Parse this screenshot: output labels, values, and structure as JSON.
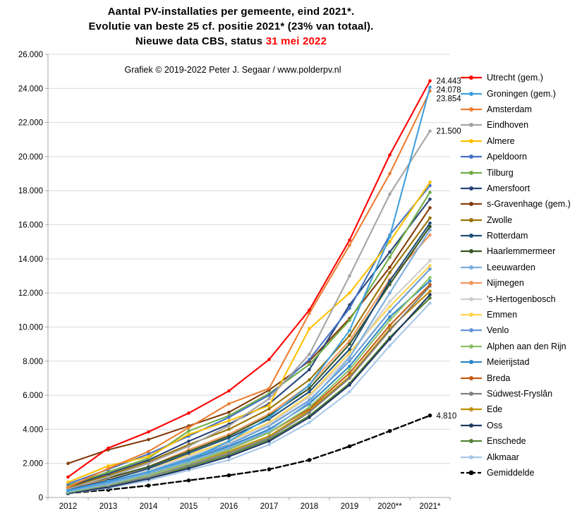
{
  "title": {
    "line1": "Aantal PV-installaties per gemeente, eind 2021*.",
    "line2": "Evolutie van beste 25 cf. positie 2021* (23% van totaal).",
    "line3_prefix": "Nieuwe data CBS, status ",
    "line3_date": "31 mei 2022"
  },
  "subtitle": "Grafiek © 2019-2022 Peter J. Segaar / www.polderpv.nl",
  "colors": {
    "date_red": "#FF0000",
    "grid": "#D9D9D9",
    "axis": "#A6A6A6",
    "text": "#000000"
  },
  "chart_data": {
    "type": "line",
    "x_categories": [
      "2012",
      "2013",
      "2014",
      "2015",
      "2016",
      "2017",
      "2018",
      "2019",
      "2020**",
      "2021*"
    ],
    "ylim": [
      0,
      26000
    ],
    "y_tick_step": 2000,
    "grid": true,
    "legend_position": "right",
    "series": [
      {
        "name": "Utrecht (gem.)",
        "color": "#FF0000",
        "values": [
          1200,
          2900,
          3850,
          4950,
          6250,
          8100,
          11000,
          15100,
          20100,
          24443
        ]
      },
      {
        "name": "Groningen (gem.)",
        "color": "#3FA0DC",
        "values": [
          400,
          950,
          1500,
          2200,
          3300,
          4700,
          6600,
          9800,
          15300,
          24078
        ]
      },
      {
        "name": "Amsterdam",
        "color": "#ED7D31",
        "values": [
          600,
          1700,
          2700,
          4100,
          5500,
          6400,
          10800,
          14800,
          19000,
          23854
        ]
      },
      {
        "name": "Eindhoven",
        "color": "#A5A5A5",
        "values": [
          500,
          1200,
          2000,
          3000,
          4200,
          5800,
          8400,
          13000,
          17800,
          21500
        ]
      },
      {
        "name": "Almere",
        "color": "#FFC000",
        "values": [
          900,
          1850,
          2400,
          3700,
          4500,
          5400,
          9900,
          12000,
          15000,
          18500
        ]
      },
      {
        "name": "Apeldoorn",
        "color": "#4472C4",
        "values": [
          800,
          1650,
          2550,
          3600,
          4700,
          6000,
          8100,
          11100,
          15400,
          18300
        ]
      },
      {
        "name": "Tilburg",
        "color": "#70AD47",
        "values": [
          700,
          1500,
          2300,
          3900,
          4800,
          6100,
          7800,
          10400,
          14100,
          17900
        ]
      },
      {
        "name": "Amersfoort",
        "color": "#264478",
        "values": [
          650,
          1400,
          2200,
          3300,
          4300,
          5500,
          7500,
          11300,
          14400,
          17500
        ]
      },
      {
        "name": "s-Gravenhage (gem.)",
        "color": "#843C0C",
        "values": [
          2000,
          2800,
          3400,
          4200,
          5000,
          6300,
          8000,
          10500,
          13500,
          17000
        ]
      },
      {
        "name": "Zwolle",
        "color": "#997300",
        "values": [
          600,
          1300,
          2100,
          3100,
          4000,
          5200,
          6900,
          9500,
          13200,
          16400
        ]
      },
      {
        "name": "Rotterdam",
        "color": "#1F4E79",
        "values": [
          450,
          1000,
          1700,
          2600,
          3500,
          4600,
          6200,
          8700,
          12700,
          16100
        ]
      },
      {
        "name": "Haarlemmermeer",
        "color": "#375623",
        "values": [
          550,
          1150,
          1800,
          2700,
          3600,
          4800,
          6400,
          9000,
          12500,
          15900
        ]
      },
      {
        "name": "Leeuwarden",
        "color": "#7CAFDD",
        "values": [
          350,
          800,
          1400,
          2100,
          2900,
          3900,
          5600,
          8200,
          12000,
          15700
        ]
      },
      {
        "name": "Nijmegen",
        "color": "#F1975A",
        "values": [
          500,
          1100,
          1800,
          2800,
          3700,
          4900,
          6600,
          9200,
          12800,
          15400
        ]
      },
      {
        "name": "'s-Hertogenbosch",
        "color": "#CFCFCF",
        "values": [
          400,
          950,
          1600,
          2400,
          3200,
          4300,
          5900,
          8300,
          11500,
          13900
        ]
      },
      {
        "name": "Emmen",
        "color": "#FFD34D",
        "values": [
          450,
          1000,
          1700,
          2500,
          3300,
          4400,
          6000,
          8500,
          11200,
          13600
        ]
      },
      {
        "name": "Venlo",
        "color": "#6699D6",
        "values": [
          350,
          850,
          1500,
          2300,
          3100,
          4200,
          5700,
          8000,
          10900,
          13400
        ]
      },
      {
        "name": "Alphen aan den Rijn",
        "color": "#8CC168",
        "values": [
          300,
          750,
          1300,
          2000,
          2800,
          3800,
          5300,
          7500,
          10400,
          12900
        ]
      },
      {
        "name": "Meierijstad",
        "color": "#2E87C8",
        "values": [
          400,
          900,
          1500,
          2200,
          3000,
          4000,
          5500,
          7700,
          10600,
          12700
        ]
      },
      {
        "name": "Breda",
        "color": "#C55A11",
        "values": [
          350,
          800,
          1400,
          2100,
          2900,
          3800,
          5200,
          7300,
          10100,
          12500
        ]
      },
      {
        "name": "Súdwest-Fryslân",
        "color": "#7F7F7F",
        "values": [
          300,
          700,
          1200,
          1900,
          2600,
          3500,
          5000,
          7000,
          9800,
          12400
        ]
      },
      {
        "name": "Ede",
        "color": "#BF8F00",
        "values": [
          350,
          750,
          1300,
          2000,
          2700,
          3600,
          5100,
          7100,
          9900,
          12100
        ]
      },
      {
        "name": "Oss",
        "color": "#203864",
        "values": [
          250,
          600,
          1100,
          1700,
          2400,
          3300,
          4700,
          6600,
          9300,
          11900
        ]
      },
      {
        "name": "Enschede",
        "color": "#548235",
        "values": [
          300,
          650,
          1100,
          1800,
          2500,
          3400,
          4800,
          6700,
          9400,
          11700
        ]
      },
      {
        "name": "Alkmaar",
        "color": "#A8C8E8",
        "values": [
          250,
          550,
          1000,
          1600,
          2200,
          3100,
          4400,
          6200,
          8900,
          11400
        ]
      },
      {
        "name": "Gemiddelde",
        "color": "#000000",
        "dash": true,
        "values": [
          250,
          450,
          700,
          1000,
          1300,
          1650,
          2200,
          3000,
          3900,
          4810
        ]
      }
    ],
    "annotations": [
      {
        "label": "24.443",
        "value": 24443
      },
      {
        "label": "24.078",
        "value": 24078
      },
      {
        "label": "23.854",
        "value": 23854
      },
      {
        "label": "21.500",
        "value": 21500
      },
      {
        "label": "4.810",
        "value": 4810
      }
    ]
  }
}
